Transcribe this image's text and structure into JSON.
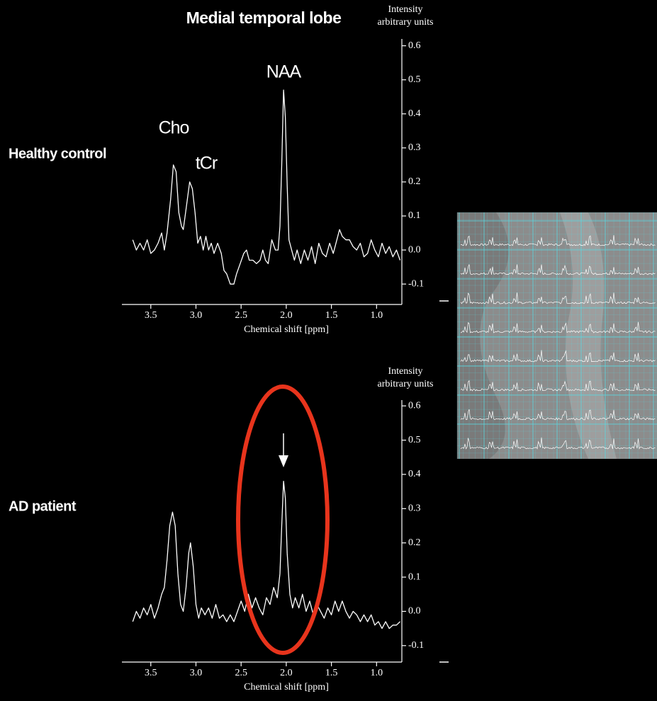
{
  "chart_data": [
    {
      "type": "line",
      "title": "Medial temporal lobe",
      "subtitle": "Healthy control",
      "ylabel": [
        "Intensity",
        "arbitrary units"
      ],
      "xlabel": "Chemical shift [ppm]",
      "annotations": [
        "Cho",
        "tCr",
        "NAA"
      ],
      "color": "#ffffff",
      "xlim": [
        3.82,
        0.72
      ],
      "ylim": [
        -0.16,
        0.62
      ],
      "xticks": [
        3.5,
        {
          "value": 3,
          "label": "3.0"
        },
        2.5,
        {
          "value": 2,
          "label": "2.0"
        },
        1.5,
        {
          "value": 1,
          "label": "1.0"
        }
      ],
      "yticks": [
        -0.1,
        {
          "value": 0,
          "label": "0.0"
        },
        0.1,
        0.2,
        0.3,
        0.4,
        0.5,
        0.6
      ],
      "x": [
        3.7,
        3.66,
        3.62,
        3.58,
        3.54,
        3.5,
        3.46,
        3.42,
        3.38,
        3.35,
        3.32,
        3.28,
        3.25,
        3.22,
        3.19,
        3.16,
        3.14,
        3.11,
        3.07,
        3.04,
        3.01,
        2.98,
        2.95,
        2.92,
        2.89,
        2.86,
        2.83,
        2.8,
        2.76,
        2.72,
        2.69,
        2.66,
        2.62,
        2.58,
        2.55,
        2.51,
        2.47,
        2.44,
        2.41,
        2.37,
        2.33,
        2.29,
        2.26,
        2.23,
        2.2,
        2.16,
        2.12,
        2.09,
        2.07,
        2.05,
        2.03,
        2.01,
        1.99,
        1.97,
        1.94,
        1.91,
        1.88,
        1.84,
        1.8,
        1.76,
        1.72,
        1.68,
        1.64,
        1.6,
        1.56,
        1.52,
        1.48,
        1.44,
        1.41,
        1.38,
        1.34,
        1.3,
        1.26,
        1.22,
        1.18,
        1.14,
        1.1,
        1.06,
        1.02,
        0.98,
        0.94,
        0.9,
        0.86,
        0.82,
        0.78,
        0.74
      ],
      "values": [
        0.03,
        0.0,
        0.02,
        0.0,
        0.03,
        -0.01,
        0.0,
        0.02,
        0.05,
        0.0,
        0.05,
        0.15,
        0.25,
        0.23,
        0.11,
        0.07,
        0.06,
        0.12,
        0.2,
        0.18,
        0.11,
        0.02,
        0.04,
        0.0,
        0.04,
        0.0,
        0.02,
        -0.01,
        0.02,
        -0.01,
        -0.06,
        -0.07,
        -0.1,
        -0.1,
        -0.07,
        -0.04,
        -0.01,
        0.0,
        -0.03,
        -0.03,
        -0.04,
        -0.03,
        0.0,
        -0.03,
        -0.04,
        0.03,
        0.0,
        0.0,
        0.07,
        0.25,
        0.47,
        0.39,
        0.19,
        0.03,
        0.0,
        -0.03,
        0.0,
        -0.04,
        0.0,
        -0.03,
        0.01,
        -0.04,
        0.02,
        -0.01,
        -0.02,
        0.02,
        -0.01,
        0.03,
        0.06,
        0.04,
        0.03,
        0.03,
        0.01,
        0.0,
        0.02,
        -0.02,
        -0.01,
        0.03,
        0.0,
        -0.02,
        0.02,
        -0.01,
        0.01,
        -0.02,
        0.0,
        -0.03
      ]
    },
    {
      "type": "line",
      "subtitle": "AD patient",
      "ylabel": [
        "Intensity",
        "arbitrary units"
      ],
      "xlabel": "Chemical shift [ppm]",
      "color": "#ffffff",
      "xlim": [
        3.82,
        0.72
      ],
      "ylim": [
        -0.148,
        0.617
      ],
      "xticks": [
        3.5,
        {
          "value": 3,
          "label": "3.0"
        },
        2.5,
        {
          "value": 2,
          "label": "2.0"
        },
        1.5,
        {
          "value": 1,
          "label": "1.0"
        }
      ],
      "yticks": [
        -0.1,
        {
          "value": 0,
          "label": "0.0"
        },
        0.1,
        0.2,
        0.3,
        0.4,
        0.5,
        0.6
      ],
      "x": [
        3.7,
        3.66,
        3.62,
        3.58,
        3.54,
        3.5,
        3.46,
        3.42,
        3.38,
        3.35,
        3.32,
        3.29,
        3.26,
        3.23,
        3.2,
        3.17,
        3.14,
        3.11,
        3.08,
        3.06,
        3.03,
        3.0,
        2.97,
        2.94,
        2.9,
        2.86,
        2.82,
        2.78,
        2.74,
        2.7,
        2.66,
        2.62,
        2.58,
        2.54,
        2.5,
        2.46,
        2.42,
        2.38,
        2.34,
        2.3,
        2.26,
        2.22,
        2.18,
        2.14,
        2.1,
        2.07,
        2.05,
        2.03,
        2.01,
        1.99,
        1.96,
        1.93,
        1.9,
        1.86,
        1.82,
        1.78,
        1.74,
        1.7,
        1.66,
        1.62,
        1.58,
        1.54,
        1.5,
        1.46,
        1.42,
        1.38,
        1.34,
        1.3,
        1.26,
        1.22,
        1.18,
        1.14,
        1.1,
        1.06,
        1.02,
        0.98,
        0.94,
        0.9,
        0.86,
        0.82,
        0.78,
        0.74
      ],
      "values": [
        -0.03,
        0.0,
        -0.02,
        0.01,
        -0.01,
        0.02,
        -0.02,
        0.01,
        0.05,
        0.07,
        0.15,
        0.25,
        0.29,
        0.25,
        0.11,
        0.02,
        0.0,
        0.07,
        0.17,
        0.2,
        0.13,
        0.02,
        -0.02,
        0.01,
        -0.01,
        0.01,
        -0.02,
        0.02,
        -0.02,
        -0.01,
        -0.03,
        -0.01,
        -0.03,
        0.0,
        0.03,
        0.0,
        0.05,
        0.01,
        0.04,
        0.01,
        -0.01,
        0.04,
        0.02,
        0.07,
        0.04,
        0.11,
        0.25,
        0.38,
        0.33,
        0.17,
        0.05,
        0.01,
        0.04,
        0.01,
        0.05,
        0.0,
        0.03,
        -0.01,
        0.02,
        0.0,
        -0.02,
        0.01,
        -0.01,
        0.03,
        0.0,
        0.03,
        0.0,
        -0.02,
        0.0,
        -0.01,
        -0.03,
        -0.01,
        -0.03,
        -0.01,
        -0.04,
        -0.03,
        -0.05,
        -0.03,
        -0.05,
        -0.04,
        -0.04,
        -0.03
      ]
    }
  ]
}
